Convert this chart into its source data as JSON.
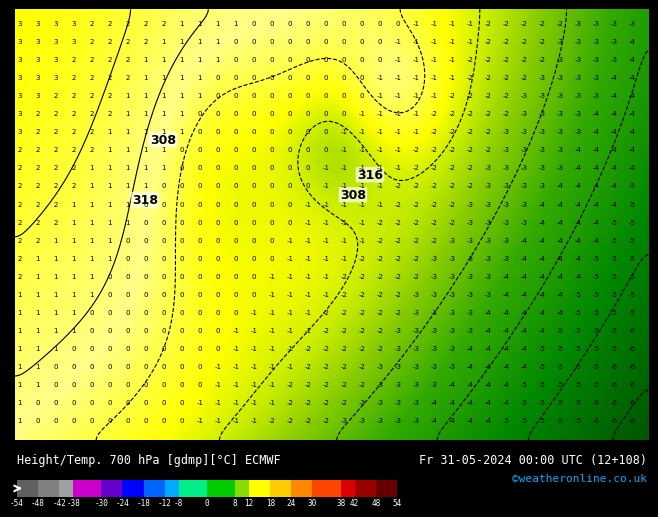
{
  "title_left": "Height/Temp. 700 hPa [gdmp][°C] ECMWF",
  "title_right": "Fr 31-05-2024 00:00 UTC (12+108)",
  "credit": "©weatheronline.co.uk",
  "colorbar_levels": [
    -54,
    -48,
    -42,
    -38,
    -30,
    -24,
    -18,
    -12,
    -8,
    0,
    8,
    12,
    18,
    24,
    30,
    38,
    42,
    48,
    54
  ],
  "colorbar_colors": [
    "#808080",
    "#a0a0a0",
    "#c0c0c0",
    "#e0e0e0",
    "#cc00cc",
    "#9900cc",
    "#0000ff",
    "#0066ff",
    "#00ccff",
    "#00ff00",
    "#99ff00",
    "#ffff00",
    "#ffcc00",
    "#ff6600",
    "#ff0000",
    "#cc0000",
    "#990000",
    "#660000"
  ],
  "map_bg_color": "#ffff00",
  "contour_label_318": "318",
  "contour_label_308_left": "308",
  "contour_label_308_right": "308",
  "contour_label_316": "316",
  "background_color": "#000000",
  "fig_bg": "#000000",
  "map_colors": {
    "yellow": "#ffff00",
    "green_light": "#99cc00",
    "green": "#00aa00",
    "dark_green": "#006600"
  }
}
